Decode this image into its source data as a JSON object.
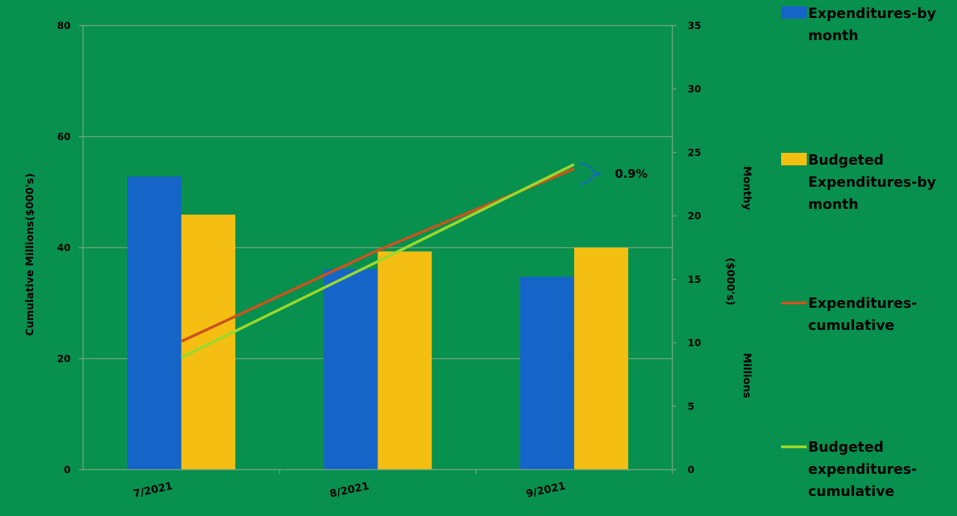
{
  "chart_data": {
    "type": "bar",
    "title": "",
    "categories": [
      "7/2021",
      "8/2021",
      "9/2021"
    ],
    "left_axis": {
      "label": "Cumulative Millions($000's)",
      "ylim": [
        0,
        80
      ],
      "ticks": [
        0,
        20,
        40,
        60,
        80
      ]
    },
    "right_axis": {
      "label_lines": [
        "Monthy",
        "($000's)",
        "Millions"
      ],
      "ylim": [
        0,
        35
      ],
      "ticks": [
        0,
        5,
        10,
        15,
        20,
        25,
        30,
        35
      ]
    },
    "grid": true,
    "legend_position": "right",
    "series": [
      {
        "name": "Expenditures-by month",
        "name_lines": [
          "Expenditures-by",
          "month"
        ],
        "type": "bar",
        "axis": "right",
        "color": "#1565c8",
        "values": [
          23.1,
          15.8,
          15.2
        ]
      },
      {
        "name": "Budgeted Expenditures-by month",
        "name_lines": [
          "Budgeted",
          "Expenditures-by",
          "month"
        ],
        "type": "bar",
        "axis": "right",
        "color": "#f5be12",
        "values": [
          20.1,
          17.2,
          17.5
        ]
      },
      {
        "name": "Expenditures-cumulative",
        "name_lines": [
          "Expenditures-",
          "cumulative"
        ],
        "type": "line",
        "axis": "left",
        "color": "#c9541e",
        "values": [
          23.1,
          39.5,
          54.2
        ]
      },
      {
        "name": "Budgeted expenditures-cumulative",
        "name_lines": [
          "Budgeted",
          "expenditures-",
          "cumulative"
        ],
        "type": "line",
        "axis": "left",
        "color": "#9ad82c",
        "values": [
          20.2,
          37.5,
          55.0
        ]
      }
    ],
    "annotation": {
      "text": "0.9%",
      "category": "9/2021"
    }
  }
}
